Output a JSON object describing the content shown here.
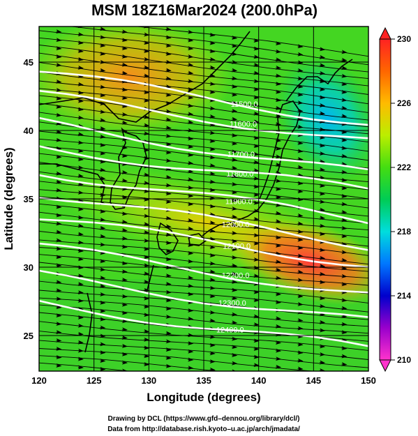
{
  "title": "MSM 18Z16Mar2024 (200.0hPa)",
  "xlabel": "Longitude (degrees)",
  "ylabel": "Latitude  (degrees)",
  "credits": [
    "Drawing by DCL (https://www.gfd–dennou.org/library/dcl/)",
    "Data from http://database.rish.kyoto–u.ac.jp/arch/jmadata/"
  ],
  "map": {
    "lon_range": [
      120,
      150
    ],
    "lat_range": [
      22.4,
      47.6
    ],
    "lon_ticks": [
      120,
      125,
      130,
      135,
      140,
      145,
      150
    ],
    "lat_ticks": [
      25,
      30,
      35,
      40,
      45
    ]
  },
  "colorbar": {
    "range": [
      210,
      230
    ],
    "ticks": [
      210,
      214,
      218,
      222,
      226,
      230
    ],
    "colors": [
      "#ff33cc",
      "#8800cc",
      "#0000cc",
      "#0088ff",
      "#00dddd",
      "#00cc44",
      "#66dd00",
      "#ccee00",
      "#ff8800",
      "#ff2222"
    ]
  },
  "contours": [
    {
      "label": "11500.0",
      "lat_at_120": 44.3,
      "lat_at_150": 40.5,
      "label_lon": 138.7
    },
    {
      "label": "11600.0",
      "lat_at_120": 42.6,
      "lat_at_150": 39.2,
      "label_lon": 138.6
    },
    {
      "label": "11700.0",
      "lat_at_120": 40.6,
      "lat_at_150": 36.8,
      "label_lon": 138.4
    },
    {
      "label": "11800.0",
      "lat_at_120": 38.8,
      "lat_at_150": 35.6,
      "label_lon": 138.3
    },
    {
      "label": "11900.0",
      "lat_at_120": 37.0,
      "lat_at_150": 33.4,
      "label_lon": 138.2
    },
    {
      "label": "12000.0",
      "lat_at_120": 35.4,
      "lat_at_150": 31.6,
      "label_lon": 137.9
    },
    {
      "label": "12100.0",
      "lat_at_120": 33.6,
      "lat_at_150": 30.2,
      "label_lon": 138.0
    },
    {
      "label": "12200.0",
      "lat_at_120": 31.5,
      "lat_at_150": 28.0,
      "label_lon": 137.9
    },
    {
      "label": "12300.0",
      "lat_at_120": 29.4,
      "lat_at_150": 26.0,
      "label_lon": 137.6
    },
    {
      "label": "12400.0",
      "lat_at_120": 27.4,
      "lat_at_150": 24.0,
      "label_lon": 137.4
    }
  ]
}
